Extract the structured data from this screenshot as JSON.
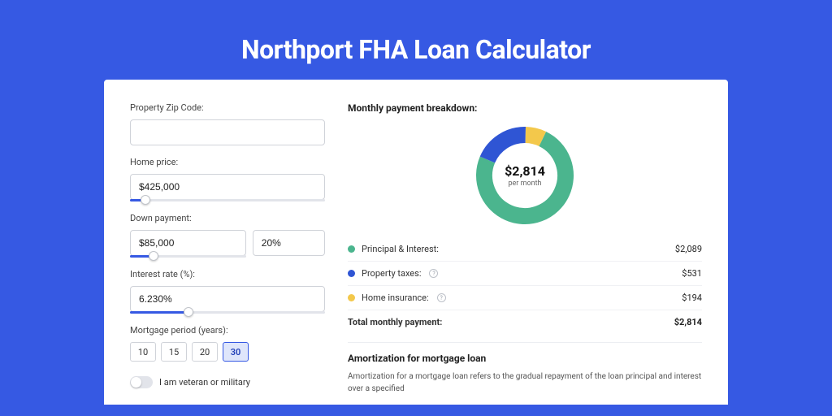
{
  "page": {
    "title": "Northport FHA Loan Calculator",
    "background_color": "#3659e3",
    "card_background": "#ffffff"
  },
  "form": {
    "zip": {
      "label": "Property Zip Code:",
      "value": ""
    },
    "home_price": {
      "label": "Home price:",
      "value": "$425,000",
      "slider_pct": 8
    },
    "down_payment": {
      "label": "Down payment:",
      "amount": "$85,000",
      "percent": "20%",
      "slider_pct": 20
    },
    "interest_rate": {
      "label": "Interest rate (%):",
      "value": "6.230%",
      "slider_pct": 30
    },
    "mortgage_period": {
      "label": "Mortgage period (years):",
      "options": [
        "10",
        "15",
        "20",
        "30"
      ],
      "selected": "30"
    },
    "veteran": {
      "label": "I am veteran or military",
      "checked": false
    }
  },
  "breakdown": {
    "title": "Monthly payment breakdown:",
    "center_value": "$2,814",
    "center_sub": "per month",
    "items": [
      {
        "label": "Principal & Interest:",
        "value": "$2,089",
        "color": "#4bb58e",
        "info": false
      },
      {
        "label": "Property taxes:",
        "value": "$531",
        "color": "#2f55d4",
        "info": true
      },
      {
        "label": "Home insurance:",
        "value": "$194",
        "color": "#f3c84b",
        "info": true
      }
    ],
    "total": {
      "label": "Total monthly payment:",
      "value": "$2,814"
    },
    "donut": {
      "type": "donut",
      "radius": 50,
      "thickness": 20,
      "background": "#ffffff",
      "segments": [
        {
          "color": "#4bb58e",
          "fraction": 0.742
        },
        {
          "color": "#2f55d4",
          "fraction": 0.189
        },
        {
          "color": "#f3c84b",
          "fraction": 0.069
        }
      ]
    }
  },
  "amortization": {
    "title": "Amortization for mortgage loan",
    "text": "Amortization for a mortgage loan refers to the gradual repayment of the loan principal and interest over a specified"
  }
}
